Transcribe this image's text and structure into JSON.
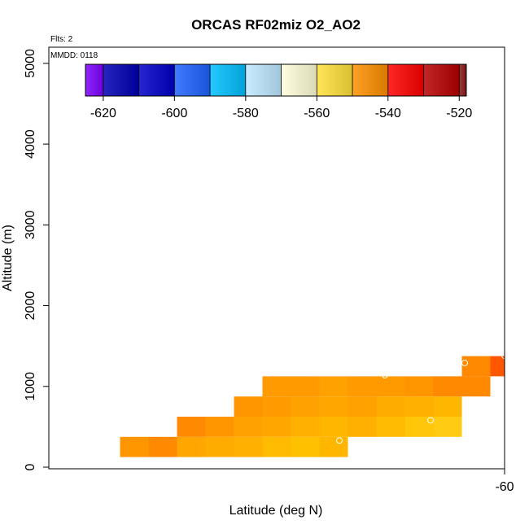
{
  "chart_data": {
    "type": "heatmap",
    "title": "ORCAS RF02miz O2_AO2",
    "flights_note": "Flts: 2",
    "date_note": "MMDD: 0118",
    "xlabel": "Latitude (deg N)",
    "ylabel": "Altitude (m)",
    "x_ticks": [
      -60
    ],
    "x_tick_labels": [
      "-60"
    ],
    "y_ticks": [
      0,
      1000,
      2000,
      3000,
      4000,
      5000
    ],
    "y_tick_labels": [
      "0",
      "1000",
      "2000",
      "3000",
      "4000",
      "5000"
    ],
    "xlim": [
      -60.8,
      -60.0
    ],
    "ylim": [
      -20,
      5200
    ],
    "colorbar": {
      "range": [
        -625,
        -518
      ],
      "ticks": [
        -620,
        -600,
        -580,
        -560,
        -540,
        -520
      ],
      "tick_labels": [
        "-620",
        "-600",
        "-580",
        "-560",
        "-540",
        "-520"
      ],
      "bin_edges": [
        -625,
        -620,
        -610,
        -600,
        -590,
        -580,
        -570,
        -560,
        -550,
        -540,
        -530,
        -520,
        -518
      ],
      "colors": [
        "#7f00ff",
        "#0000b3",
        "#0000c8",
        "#1e64ff",
        "#00bfff",
        "#bfe9ff",
        "#ffffd9",
        "#ffe23a",
        "#ff9000",
        "#ff0000",
        "#b80000",
        "#8b1a1a"
      ]
    },
    "cell_size": {
      "lat": 0.05,
      "alt": 250
    },
    "cells": [
      {
        "lat": -60.65,
        "alt": 250,
        "value": -548
      },
      {
        "lat": -60.6,
        "alt": 250,
        "value": -547
      },
      {
        "lat": -60.55,
        "alt": 250,
        "value": -551
      },
      {
        "lat": -60.5,
        "alt": 250,
        "value": -552
      },
      {
        "lat": -60.45,
        "alt": 250,
        "value": -553
      },
      {
        "lat": -60.4,
        "alt": 250,
        "value": -555
      },
      {
        "lat": -60.35,
        "alt": 250,
        "value": -556
      },
      {
        "lat": -60.3,
        "alt": 250,
        "value": -554
      },
      {
        "lat": -60.55,
        "alt": 500,
        "value": -547
      },
      {
        "lat": -60.5,
        "alt": 500,
        "value": -548
      },
      {
        "lat": -60.45,
        "alt": 500,
        "value": -550
      },
      {
        "lat": -60.4,
        "alt": 500,
        "value": -551
      },
      {
        "lat": -60.35,
        "alt": 500,
        "value": -553
      },
      {
        "lat": -60.3,
        "alt": 500,
        "value": -554
      },
      {
        "lat": -60.25,
        "alt": 500,
        "value": -553
      },
      {
        "lat": -60.2,
        "alt": 500,
        "value": -555
      },
      {
        "lat": -60.15,
        "alt": 500,
        "value": -557
      },
      {
        "lat": -60.1,
        "alt": 500,
        "value": -558
      },
      {
        "lat": -60.45,
        "alt": 750,
        "value": -548
      },
      {
        "lat": -60.4,
        "alt": 750,
        "value": -549
      },
      {
        "lat": -60.35,
        "alt": 750,
        "value": -550
      },
      {
        "lat": -60.3,
        "alt": 750,
        "value": -551
      },
      {
        "lat": -60.25,
        "alt": 750,
        "value": -550
      },
      {
        "lat": -60.2,
        "alt": 750,
        "value": -552
      },
      {
        "lat": -60.15,
        "alt": 750,
        "value": -553
      },
      {
        "lat": -60.1,
        "alt": 750,
        "value": -554
      },
      {
        "lat": -60.4,
        "alt": 1000,
        "value": -549
      },
      {
        "lat": -60.35,
        "alt": 1000,
        "value": -549
      },
      {
        "lat": -60.3,
        "alt": 1000,
        "value": -550
      },
      {
        "lat": -60.25,
        "alt": 1000,
        "value": -549
      },
      {
        "lat": -60.2,
        "alt": 1000,
        "value": -549
      },
      {
        "lat": -60.15,
        "alt": 1000,
        "value": -548
      },
      {
        "lat": -60.1,
        "alt": 1000,
        "value": -547
      },
      {
        "lat": -60.05,
        "alt": 1000,
        "value": -547
      },
      {
        "lat": -60.05,
        "alt": 1250,
        "value": -547
      },
      {
        "lat": -60.0,
        "alt": 1250,
        "value": -543
      }
    ],
    "points": [
      {
        "lat": -60.61,
        "alt": 450
      },
      {
        "lat": -60.37,
        "alt": 1210
      },
      {
        "lat": -60.29,
        "alt": 330
      },
      {
        "lat": -60.21,
        "alt": 1140
      },
      {
        "lat": -60.13,
        "alt": 580
      },
      {
        "lat": -60.07,
        "alt": 1290
      },
      {
        "lat": -60.0,
        "alt": 1380
      }
    ]
  }
}
